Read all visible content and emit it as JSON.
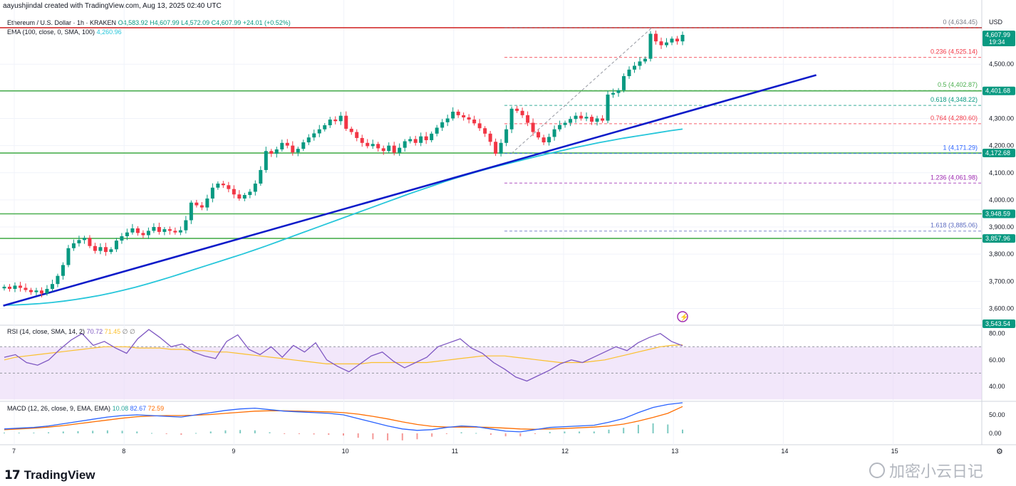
{
  "header": {
    "byline": "aayushjindal created with TradingView.com, Aug 13, 2025 02:40 UTC"
  },
  "legend": {
    "symbol": "Ethereum / U.S. Dollar · 1h · KRAKEN",
    "ohlc": "O4,583.92 H4,607.99 L4,572.09 C4,607.99 +24.01 (+0.52%)",
    "ema_label": "EMA (100, close, 0, SMA, 100)",
    "ema_value": "4,260.96"
  },
  "rsi_legend": {
    "label": "RSI (14, close, SMA, 14, 2)",
    "value": "70.72",
    "sma": "71.45",
    "extra": "∅ ∅"
  },
  "macd_legend": {
    "label": "MACD (12, 26, close, 9, EMA, EMA)",
    "hist": "10.08",
    "macd": "82.67",
    "signal": "72.59"
  },
  "price_axis": {
    "currency": "USD",
    "ticks": [
      "4,500.00",
      "4,400.00",
      "4,300.00",
      "4,200.00",
      "4,100.00",
      "4,000.00",
      "3,900.00",
      "3,800.00",
      "3,700.00",
      "3,600.00"
    ],
    "labels": [
      {
        "text": "4,607.99",
        "sub": "19:34",
        "color": "#089981",
        "value": 4607.99
      },
      {
        "text": "4,401.68",
        "color": "#089981",
        "value": 4401.68
      },
      {
        "text": "4,172.68",
        "color": "#089981",
        "value": 4172.68
      },
      {
        "text": "3,948.59",
        "color": "#089981",
        "value": 3948.59
      },
      {
        "text": "3,857.96",
        "color": "#089981",
        "value": 3857.96
      },
      {
        "text": "3,543.54",
        "color": "#089981",
        "value": 3543.54
      }
    ]
  },
  "rsi_axis": [
    "80.00",
    "60.00",
    "40.00"
  ],
  "macd_axis": [
    "50.00",
    "0.00"
  ],
  "time_axis": [
    "7",
    "8",
    "9",
    "10",
    "11",
    "12",
    "13",
    "14",
    "15"
  ],
  "fib_levels": [
    {
      "label": "0 (4,634.45)",
      "value": 4634.45,
      "color": "#787b86"
    },
    {
      "label": "0.236 (4,525.14)",
      "value": 4525.14,
      "color": "#f23645"
    },
    {
      "label": "0.5 (4,402.87)",
      "value": 4402.87,
      "color": "#4caf50"
    },
    {
      "label": "0.618 (4,348.22)",
      "value": 4348.22,
      "color": "#089981"
    },
    {
      "label": "0.764 (4,280.60)",
      "value": 4280.6,
      "color": "#f23645"
    },
    {
      "label": "1 (4,171.29)",
      "value": 4171.29,
      "color": "#2962ff"
    },
    {
      "label": "1.236 (4,061.98)",
      "value": 4061.98,
      "color": "#9c27b0"
    },
    {
      "label": "1.618 (3,885.06)",
      "value": 3885.06,
      "color": "#5c6bc0"
    }
  ],
  "horizontal_lines": [
    {
      "name": "resistance-top",
      "value": 4634.45,
      "color": "#d32f2f"
    },
    {
      "name": "support-4401",
      "value": 4401.68,
      "color": "#4caf50"
    },
    {
      "name": "support-4172",
      "value": 4172.68,
      "color": "#4caf50"
    },
    {
      "name": "support-3948",
      "value": 3948.59,
      "color": "#4caf50"
    },
    {
      "name": "support-3857",
      "value": 3857.96,
      "color": "#4caf50"
    }
  ],
  "trendline": {
    "from": {
      "day": 6.9,
      "price": 3610
    },
    "to": {
      "day": 14.3,
      "price": 4460
    },
    "color": "#0d1bc9"
  },
  "colors": {
    "up": "#089981",
    "down": "#f23645",
    "ema": "#26c6da",
    "rsi": "#7e57c2",
    "rsi_band": "#e9d7f7",
    "macd": "#2962ff",
    "signal": "#ff6d00"
  },
  "chart_data": {
    "type": "candlestick",
    "title": "Ethereum / U.S. Dollar · 1h · KRAKEN",
    "ylim": [
      3543.54,
      4680
    ],
    "xlim_days": [
      6.95,
      15.8
    ],
    "closes": [
      3680,
      3672,
      3684,
      3676,
      3668,
      3660,
      3666,
      3655,
      3672,
      3690,
      3720,
      3760,
      3822,
      3840,
      3852,
      3860,
      3830,
      3812,
      3826,
      3808,
      3818,
      3850,
      3866,
      3880,
      3895,
      3878,
      3870,
      3886,
      3900,
      3882,
      3892,
      3886,
      3880,
      3888,
      3925,
      3990,
      3980,
      3972,
      4005,
      4045,
      4060,
      4054,
      4040,
      4020,
      4005,
      4018,
      4030,
      4060,
      4110,
      4180,
      4170,
      4186,
      4210,
      4200,
      4175,
      4188,
      4212,
      4230,
      4245,
      4260,
      4275,
      4296,
      4290,
      4310,
      4262,
      4250,
      4228,
      4210,
      4198,
      4206,
      4190,
      4180,
      4200,
      4174,
      4192,
      4216,
      4224,
      4210,
      4234,
      4220,
      4244,
      4266,
      4286,
      4300,
      4325,
      4312,
      4304,
      4296,
      4282,
      4264,
      4244,
      4214,
      4170,
      4210,
      4260,
      4336,
      4328,
      4312,
      4284,
      4250,
      4230,
      4212,
      4232,
      4260,
      4276,
      4284,
      4298,
      4310,
      4300,
      4306,
      4288,
      4300,
      4292,
      4388,
      4394,
      4404,
      4456,
      4480,
      4494,
      4510,
      4520,
      4612,
      4584,
      4570,
      4580,
      4594,
      4584,
      4608
    ],
    "ema_100": [
      3612,
      3613,
      3615,
      3618,
      3622,
      3627,
      3633,
      3640,
      3648,
      3657,
      3667,
      3678,
      3690,
      3703,
      3716,
      3730,
      3744,
      3758,
      3772,
      3786,
      3800,
      3815,
      3830,
      3846,
      3862,
      3878,
      3894,
      3910,
      3926,
      3942,
      3958,
      3974,
      3990,
      4006,
      4022,
      4037,
      4052,
      4067,
      4081,
      4094,
      4107,
      4119,
      4130,
      4141,
      4152,
      4163,
      4173,
      4183,
      4193,
      4202,
      4211,
      4219,
      4227,
      4234,
      4241,
      4248,
      4255,
      4260.96
    ],
    "rsi": [
      62,
      64,
      58,
      56,
      60,
      68,
      75,
      80,
      71,
      74,
      69,
      65,
      76,
      83,
      77,
      70,
      72,
      66,
      63,
      61,
      74,
      79,
      68,
      64,
      70,
      62,
      71,
      66,
      73,
      60,
      55,
      51,
      57,
      63,
      66,
      59,
      54,
      58,
      62,
      70,
      73,
      76,
      69,
      65,
      58,
      53,
      47,
      44,
      48,
      52,
      57,
      60,
      58,
      62,
      66,
      70,
      67,
      73,
      77,
      80,
      74,
      70.72
    ],
    "rsi_ma": [
      60,
      62,
      63,
      64,
      65,
      66,
      67,
      68,
      69,
      70,
      70,
      70,
      69,
      69,
      69,
      68,
      68,
      67,
      67,
      66,
      66,
      65,
      64,
      63,
      62,
      61,
      60,
      59,
      58,
      57,
      57,
      57,
      57,
      58,
      58,
      58,
      58,
      58,
      58,
      59,
      60,
      61,
      62,
      63,
      63,
      63,
      62,
      61,
      60,
      59,
      58,
      58,
      58,
      59,
      60,
      62,
      64,
      66,
      68,
      70,
      71,
      71.45
    ],
    "macd_line": [
      12,
      14,
      16,
      20,
      26,
      32,
      38,
      44,
      48,
      50,
      48,
      46,
      44,
      50,
      56,
      62,
      66,
      68,
      64,
      60,
      58,
      56,
      54,
      50,
      40,
      30,
      20,
      12,
      8,
      10,
      16,
      20,
      18,
      12,
      6,
      4,
      10,
      16,
      18,
      20,
      22,
      30,
      40,
      56,
      70,
      78,
      82.67
    ],
    "macd_signal": [
      10,
      12,
      14,
      17,
      21,
      26,
      31,
      36,
      41,
      45,
      47,
      48,
      48,
      49,
      51,
      54,
      57,
      60,
      61,
      61,
      60,
      59,
      58,
      56,
      52,
      46,
      39,
      31,
      24,
      19,
      17,
      17,
      17,
      16,
      14,
      12,
      11,
      12,
      13,
      15,
      17,
      20,
      25,
      33,
      43,
      54,
      72.59
    ]
  }
}
